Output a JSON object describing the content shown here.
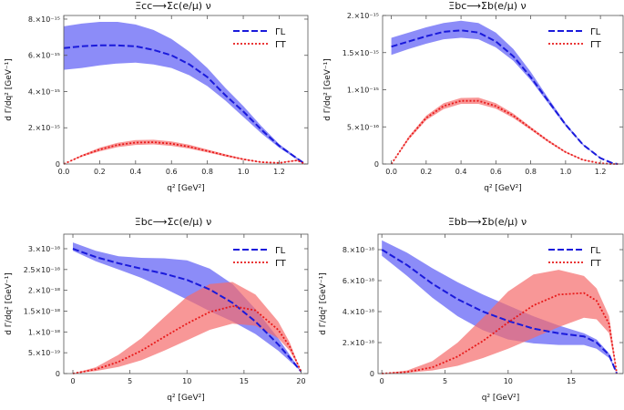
{
  "chart_data": [
    {
      "type": "line",
      "title": "Ξcc⟶Σc(e/μ) ν",
      "xlabel": "q² [GeV²]",
      "ylabel": "d Γ/dq² [GeV⁻¹]",
      "xlim": [
        0,
        1.36
      ],
      "ylim": [
        0,
        8.2e-15
      ],
      "xticks": [
        0,
        0.2,
        0.4,
        0.6,
        0.8,
        1.0,
        1.2
      ],
      "xtick_labels": [
        "0.0",
        "0.2",
        "0.4",
        "0.6",
        "0.8",
        "1.0",
        "1.2"
      ],
      "yticks": [
        0,
        2e-15,
        4e-15,
        6e-15,
        8e-15
      ],
      "ytick_labels": [
        "0",
        "2.×10⁻¹⁵",
        "4.×10⁻¹⁵",
        "6.×10⁻¹⁵",
        "8.×10⁻¹⁵"
      ],
      "legend": [
        "ΓL",
        "ΓT"
      ],
      "legend_position": "top-right",
      "series": [
        {
          "name": "ΓL",
          "color": "#1a1adb",
          "x": [
            0,
            0.1,
            0.2,
            0.3,
            0.4,
            0.5,
            0.6,
            0.7,
            0.8,
            0.9,
            1.0,
            1.1,
            1.2,
            1.3,
            1.345
          ],
          "central": [
            6.4e-15,
            6.5e-15,
            6.55e-15,
            6.55e-15,
            6.5e-15,
            6.3e-15,
            6e-15,
            5.5e-15,
            4.8e-15,
            3.8e-15,
            2.9e-15,
            1.9e-15,
            1e-15,
            3e-16,
            0
          ],
          "lower": [
            5.2e-15,
            5.3e-15,
            5.45e-15,
            5.55e-15,
            5.6e-15,
            5.5e-15,
            5.3e-15,
            4.9e-15,
            4.3e-15,
            3.5e-15,
            2.6e-15,
            1.7e-15,
            9e-16,
            2.5e-16,
            0
          ],
          "upper": [
            7.6e-15,
            7.75e-15,
            7.85e-15,
            7.85e-15,
            7.7e-15,
            7.4e-15,
            6.9e-15,
            6.2e-15,
            5.3e-15,
            4.2e-15,
            3.2e-15,
            2.1e-15,
            1.1e-15,
            3.5e-16,
            0
          ]
        },
        {
          "name": "ΓT",
          "color": "#e81a1a",
          "x": [
            0,
            0.1,
            0.2,
            0.3,
            0.4,
            0.5,
            0.6,
            0.7,
            0.8,
            0.9,
            1.0,
            1.1,
            1.2,
            1.3,
            1.345
          ],
          "central": [
            0,
            4.5e-16,
            8e-16,
            1.05e-15,
            1.18e-15,
            1.2e-15,
            1.12e-15,
            9.5e-16,
            7.2e-16,
            4.8e-16,
            2.6e-16,
            1e-16,
            6e-17,
            2e-16,
            0
          ],
          "lower": [
            0,
            4e-16,
            7e-16,
            9.3e-16,
            1.05e-15,
            1.08e-15,
            1e-15,
            8.5e-16,
            6.4e-16,
            4.2e-16,
            2.2e-16,
            8e-17,
            5e-17,
            1.7e-16,
            0
          ],
          "upper": [
            0,
            5e-16,
            9e-16,
            1.17e-15,
            1.32e-15,
            1.34e-15,
            1.25e-15,
            1.06e-15,
            8e-16,
            5.4e-16,
            3e-16,
            1.2e-16,
            7e-17,
            2.3e-16,
            0
          ]
        }
      ]
    },
    {
      "type": "line",
      "title": "Ξbc⟶Σb(e/μ) ν",
      "xlabel": "q² [GeV²]",
      "ylabel": "d Γ/dq² [GeV⁻¹]",
      "xlim": [
        -0.05,
        1.33
      ],
      "ylim": [
        0,
        2e-15
      ],
      "xticks": [
        0,
        0.2,
        0.4,
        0.6,
        0.8,
        1.0,
        1.2
      ],
      "xtick_labels": [
        "0.0",
        "0.2",
        "0.4",
        "0.6",
        "0.8",
        "1.0",
        "1.2"
      ],
      "yticks": [
        0,
        5e-16,
        1e-15,
        1.5e-15,
        2e-15
      ],
      "ytick_labels": [
        "0",
        "5.×10⁻¹⁶",
        "1.×10⁻¹⁵",
        "1.5×10⁻¹⁵",
        "2.×10⁻¹⁵"
      ],
      "legend": [
        "ΓL",
        "ΓT"
      ],
      "legend_position": "top-right",
      "series": [
        {
          "name": "ΓL",
          "color": "#1a1adb",
          "x": [
            0,
            0.1,
            0.2,
            0.3,
            0.4,
            0.5,
            0.6,
            0.7,
            0.8,
            0.9,
            1.0,
            1.1,
            1.2,
            1.27,
            1.3
          ],
          "central": [
            1.58e-15,
            1.65e-15,
            1.72e-15,
            1.78e-15,
            1.8e-15,
            1.77e-15,
            1.65e-15,
            1.45e-15,
            1.17e-15,
            8.5e-16,
            5.3e-16,
            2.6e-16,
            8e-17,
            1e-17,
            0
          ],
          "lower": [
            1.47e-15,
            1.55e-15,
            1.62e-15,
            1.68e-15,
            1.7e-15,
            1.68e-15,
            1.57e-15,
            1.39e-15,
            1.13e-15,
            8.2e-16,
            5.1e-16,
            2.5e-16,
            7.5e-17,
            1e-17,
            0
          ],
          "upper": [
            1.7e-15,
            1.77e-15,
            1.84e-15,
            1.9e-15,
            1.93e-15,
            1.9e-15,
            1.77e-15,
            1.55e-15,
            1.24e-15,
            8.9e-16,
            5.5e-16,
            2.7e-16,
            8.5e-17,
            1e-17,
            0
          ]
        },
        {
          "name": "ΓT",
          "color": "#e81a1a",
          "x": [
            0,
            0.1,
            0.2,
            0.3,
            0.4,
            0.5,
            0.6,
            0.7,
            0.8,
            0.9,
            1.0,
            1.1,
            1.2,
            1.27,
            1.3
          ],
          "central": [
            0,
            3.5e-16,
            6.2e-16,
            7.8e-16,
            8.5e-16,
            8.5e-16,
            7.8e-16,
            6.5e-16,
            4.8e-16,
            3.1e-16,
            1.6e-16,
            5.5e-17,
            1e-17,
            0,
            0
          ],
          "lower": [
            0,
            3.3e-16,
            5.9e-16,
            7.4e-16,
            8.1e-16,
            8.1e-16,
            7.45e-16,
            6.2e-16,
            4.6e-16,
            2.95e-16,
            1.5e-16,
            5e-17,
            1e-17,
            0,
            0
          ],
          "upper": [
            0,
            3.7e-16,
            6.5e-16,
            8.2e-16,
            8.9e-16,
            8.95e-16,
            8.2e-16,
            6.8e-16,
            5e-16,
            3.25e-16,
            1.7e-16,
            6e-17,
            1e-17,
            0,
            0
          ]
        }
      ]
    },
    {
      "type": "line",
      "title": "Ξbc⟶Σc(e/μ) ν",
      "xlabel": "q² [GeV²]",
      "ylabel": "d Γ/dq² [GeV⁻¹]",
      "xlim": [
        -0.8,
        20.6
      ],
      "ylim": [
        0,
        3.35e-18
      ],
      "xticks": [
        0,
        5,
        10,
        15,
        20
      ],
      "xtick_labels": [
        "0",
        "5",
        "10",
        "15",
        "20"
      ],
      "yticks": [
        0,
        5e-19,
        1e-18,
        1.5e-18,
        2e-18,
        2.5e-18,
        3e-18
      ],
      "ytick_labels": [
        "0",
        "5.×10⁻¹⁹",
        "1.×10⁻¹⁸",
        "1.5×10⁻¹⁸",
        "2.×10⁻¹⁸",
        "2.5×10⁻¹⁸",
        "3.×10⁻¹⁸"
      ],
      "legend": [
        "ΓL",
        "ΓT"
      ],
      "legend_position": "top-right",
      "series": [
        {
          "name": "ΓL",
          "color": "#1a1adb",
          "x": [
            0,
            2,
            4,
            6,
            8,
            10,
            12,
            14,
            16,
            18,
            19,
            20
          ],
          "central": [
            3e-18,
            2.8e-18,
            2.65e-18,
            2.52e-18,
            2.4e-18,
            2.25e-18,
            2.02e-18,
            1.7e-18,
            1.25e-18,
            7e-19,
            3.8e-19,
            5e-20
          ],
          "lower": [
            2.95e-18,
            2.7e-18,
            2.5e-18,
            2.3e-18,
            2.05e-18,
            1.78e-18,
            1.5e-18,
            1.25e-18,
            9.5e-19,
            5.5e-19,
            3e-19,
            5e-20
          ],
          "upper": [
            3.15e-18,
            2.95e-18,
            2.82e-18,
            2.78e-18,
            2.77e-18,
            2.72e-18,
            2.52e-18,
            2.15e-18,
            1.55e-18,
            8.5e-19,
            4.5e-19,
            5e-20
          ]
        },
        {
          "name": "ΓT",
          "color": "#e81a1a",
          "x": [
            0,
            2,
            4,
            6,
            8,
            10,
            12,
            14,
            16,
            18,
            19,
            20
          ],
          "central": [
            0,
            1e-19,
            2.8e-19,
            5.5e-19,
            8.8e-19,
            1.2e-18,
            1.48e-18,
            1.62e-18,
            1.52e-18,
            1.05e-18,
            6.5e-19,
            5e-20
          ],
          "lower": [
            0,
            6e-20,
            1.6e-19,
            3.2e-19,
            5.5e-19,
            8e-19,
            1.05e-18,
            1.2e-18,
            1.15e-18,
            8.5e-19,
            5.5e-19,
            5e-20
          ],
          "upper": [
            0,
            1.5e-19,
            4.5e-19,
            8.5e-19,
            1.35e-18,
            1.85e-18,
            2.15e-18,
            2.2e-18,
            1.9e-18,
            1.25e-18,
            7.5e-19,
            5e-20
          ]
        }
      ]
    },
    {
      "type": "line",
      "title": "Ξbb⟶Σb(e/μ) ν",
      "xlabel": "q² [GeV²]",
      "ylabel": "d Γ/dq² [GeV⁻¹]",
      "xlim": [
        -0.3,
        19.1
      ],
      "ylim": [
        0,
        9e-18
      ],
      "xticks": [
        0,
        5,
        10,
        15
      ],
      "xtick_labels": [
        "0",
        "5",
        "10",
        "15"
      ],
      "yticks": [
        0,
        2e-18,
        4e-18,
        6e-18,
        8e-18
      ],
      "ytick_labels": [
        "0",
        "2.×10⁻¹⁸",
        "4.×10⁻¹⁸",
        "6.×10⁻¹⁸",
        "8.×10⁻¹⁸"
      ],
      "legend": [
        "ΓL",
        "ΓT"
      ],
      "legend_position": "top-right",
      "series": [
        {
          "name": "ΓL",
          "color": "#1a1adb",
          "x": [
            0,
            2,
            4,
            6,
            8,
            10,
            12,
            14,
            16,
            17,
            18,
            18.6
          ],
          "central": [
            8e-18,
            7e-18,
            5.8e-18,
            4.8e-18,
            4e-18,
            3.4e-18,
            2.9e-18,
            2.6e-18,
            2.4e-18,
            2e-18,
            1.2e-18,
            0
          ],
          "lower": [
            7.6e-18,
            6.3e-18,
            4.9e-18,
            3.7e-18,
            2.8e-18,
            2.2e-18,
            1.95e-18,
            1.85e-18,
            1.85e-18,
            1.6e-18,
            1e-18,
            0
          ],
          "upper": [
            8.6e-18,
            7.8e-18,
            6.8e-18,
            5.9e-18,
            5.1e-18,
            4.4e-18,
            3.7e-18,
            3.1e-18,
            2.6e-18,
            2.2e-18,
            1.3e-18,
            0
          ]
        },
        {
          "name": "ΓT",
          "color": "#e81a1a",
          "x": [
            0,
            2,
            4,
            6,
            8,
            10,
            12,
            14,
            16,
            17,
            18,
            18.6
          ],
          "central": [
            0,
            1e-19,
            4e-19,
            1.1e-18,
            2.1e-18,
            3.3e-18,
            4.4e-18,
            5.1e-18,
            5.2e-18,
            4.7e-18,
            3.2e-18,
            0
          ],
          "lower": [
            0,
            5e-20,
            2e-19,
            5e-19,
            1e-18,
            1.6e-18,
            2.3e-18,
            3e-18,
            3.6e-18,
            3.5e-18,
            2.6e-18,
            0
          ],
          "upper": [
            0,
            2e-19,
            8e-19,
            2e-18,
            3.6e-18,
            5.3e-18,
            6.4e-18,
            6.7e-18,
            6.3e-18,
            5.5e-18,
            3.7e-18,
            0
          ]
        }
      ]
    }
  ],
  "colors": {
    "gamma_l": "#1a1adb",
    "gamma_t": "#e81a1a",
    "band_l": "#5b5bf5",
    "band_t": "#f56b6b"
  }
}
